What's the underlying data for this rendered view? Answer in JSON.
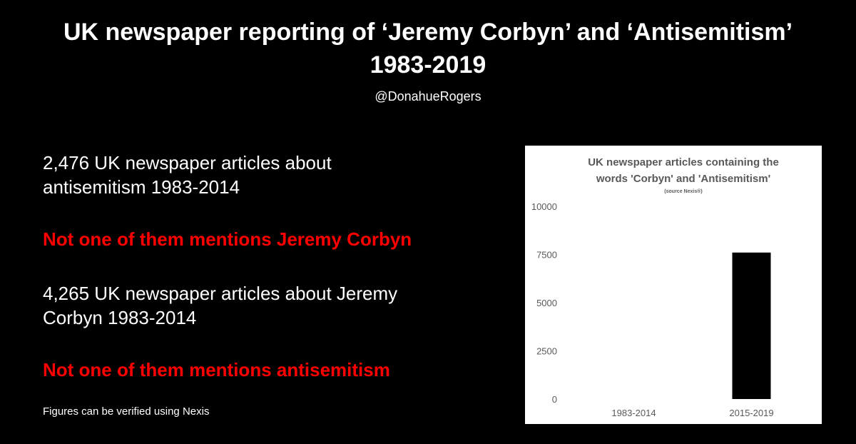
{
  "header": {
    "title_line1": "UK newspaper reporting of ‘Jeremy Corbyn’ and ‘Antisemitism’",
    "title_line2": "1983-2019",
    "handle": "@DonahueRogers"
  },
  "stats": {
    "stat1_line1": "2,476 UK newspaper articles about",
    "stat1_line2": "antisemitism 1983-2014",
    "stat1_note": "Not one of them mentions Jeremy Corbyn",
    "stat2_line1": "4,265 UK newspaper articles about Jeremy",
    "stat2_line2": "Corbyn 1983-2014",
    "stat2_note": "Not one of them mentions antisemitism"
  },
  "footnote": "Figures can be verified using Nexis",
  "colors": {
    "background": "#000000",
    "text": "#ffffff",
    "highlight": "#ff0000",
    "chart_bg": "#ffffff",
    "bar": "#000000",
    "axis_text": "#595959"
  },
  "chart_data": {
    "type": "bar",
    "title_line1": "UK newspaper articles containing the",
    "title_line2": "words 'Corbyn' and 'Antisemitism'",
    "subtitle": "(source Nexis®)",
    "categories": [
      "1983-2014",
      "2015-2019"
    ],
    "values": [
      0,
      7600
    ],
    "ylim": [
      0,
      10000
    ],
    "yticks": [
      0,
      2500,
      5000,
      7500,
      10000
    ],
    "ytick_labels": [
      "0",
      "2500",
      "5000",
      "7500",
      "10000"
    ],
    "xlabel": "",
    "ylabel": "",
    "grid": false,
    "legend": "none"
  }
}
